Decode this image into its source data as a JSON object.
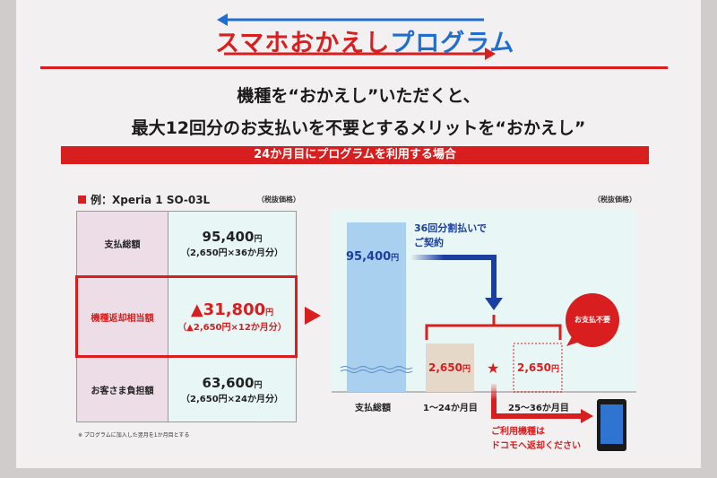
{
  "logo": {
    "text_red": "スマホおかえし",
    "text_blue": "プログラム"
  },
  "headline": {
    "line1": "機種を“おかえし”いただくと、",
    "line2": "最大12回分のお支払いを不要とするメリットを“おかえし”"
  },
  "banner": "24か月目にプログラムを利用する場合",
  "example": {
    "title": "例：Xperia 1  SO-03L",
    "tax_note": "（税抜価格）"
  },
  "table": {
    "rows": [
      {
        "label": "支払総額",
        "amount": "95,400",
        "unit": "円",
        "detail": "（2,650円×36か月分）"
      },
      {
        "label": "機種返却相当額",
        "amount": "▲31,800",
        "unit": "円",
        "detail": "（▲2,650円×12か月分）"
      },
      {
        "label": "お客さま負担額",
        "amount": "63,600",
        "unit": "円",
        "detail": "（2,650円×24か月分）"
      }
    ]
  },
  "footnote": "※ プログラムに加入した翌月を1か月目とする",
  "diagram": {
    "tax_note": "（税抜価格）",
    "total": "95,400",
    "unit": "円",
    "contract_line1": "36回分割払いで",
    "contract_line2": "ご契約",
    "monthly_paid": "2,650",
    "monthly_waived": "2,650",
    "bubble": "お支払不要",
    "star": "★",
    "labels": [
      "支払総額",
      "1〜24か月目",
      "25〜36か月目"
    ],
    "return_line1": "ご利用機種は",
    "return_line2": "ドコモへ返却ください"
  },
  "colors": {
    "red": "#d81e1e",
    "blue": "#1a3fa0",
    "bar": "#a9d0ee"
  }
}
